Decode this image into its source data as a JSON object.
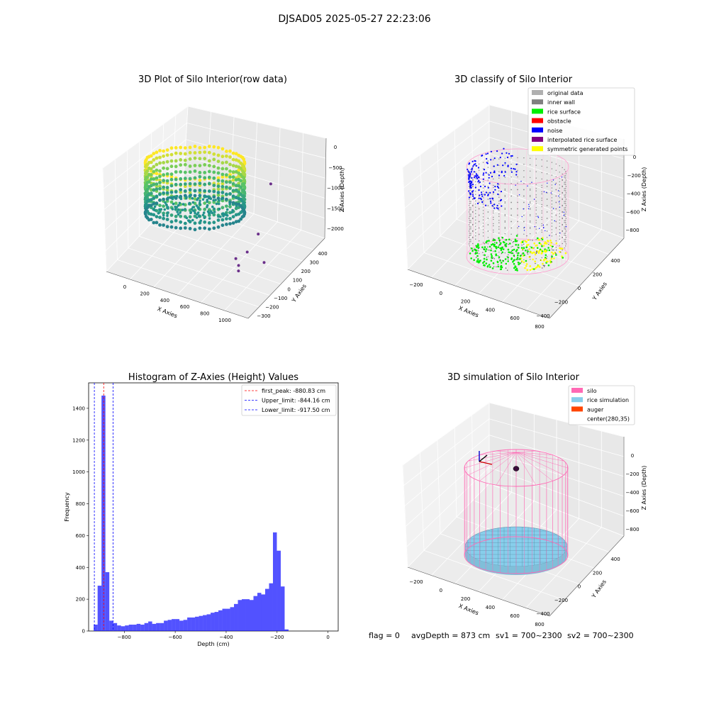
{
  "suptitle": "DJSAD05 2025-05-27 22:23:06",
  "status": {
    "flag": "flag = 0",
    "avg": "avgDepth = 873 cm",
    "sv1": "sv1 = 700~2300",
    "sv2": "sv2 = 700~2300"
  },
  "colors": {
    "original": "#b0b0b0",
    "inner_wall": "#808080",
    "rice_surface": "#00ee00",
    "obstacle": "#ff0000",
    "noise": "#0000ff",
    "interp": "#800080",
    "symmetric": "#ffff00",
    "silo": "#ff69b4",
    "rice_sim": "#87ceeb",
    "auger": "#ff4500",
    "hist": "#0000ff"
  },
  "chart_data": [
    {
      "type": "scatter",
      "title": "3D Plot of Silo Interior(row data)",
      "xlabel": "X Axies",
      "ylabel": "Y Axies",
      "zlabel": "Z Axies (Depth)",
      "x_ticks": [
        "0",
        "200",
        "400",
        "600",
        "800",
        "1000"
      ],
      "y_ticks": [
        "400",
        "300",
        "200",
        "100",
        "0",
        "−100",
        "−200",
        "−300"
      ],
      "z_ticks": [
        "0",
        "−500",
        "−1000",
        "−1500",
        "−2000"
      ],
      "outliers": [
        {
          "x": 700,
          "y": 380,
          "z": -1860
        },
        {
          "x": 780,
          "y": 150,
          "z": -2300
        },
        {
          "x": 760,
          "y": 60,
          "z": -2480
        },
        {
          "x": 720,
          "y": -10,
          "z": -2500
        },
        {
          "x": 760,
          "y": -30,
          "z": -2560
        },
        {
          "x": 800,
          "y": -80,
          "z": -2540
        },
        {
          "x": 1000,
          "y": -60,
          "z": -2280
        }
      ]
    },
    {
      "type": "scatter",
      "title": "3D classify of Silo Interior",
      "xlabel": "X Axies",
      "ylabel": "Y Axies",
      "zlabel": "Z Axies (Depth)",
      "x_ticks": [
        "−200",
        "0",
        "200",
        "400",
        "600",
        "800"
      ],
      "y_ticks": [
        "400",
        "200",
        "0",
        "−200",
        "−400"
      ],
      "z_ticks": [
        "0",
        "−200",
        "−400",
        "−600",
        "−800"
      ],
      "legend": [
        {
          "label": "original data",
          "color": "#b0b0b0"
        },
        {
          "label": "inner wall",
          "color": "#808080"
        },
        {
          "label": "rice surface",
          "color": "#00ee00"
        },
        {
          "label": "obstacle",
          "color": "#ff0000"
        },
        {
          "label": "noise",
          "color": "#0000ff"
        },
        {
          "label": "interpolated rice surface",
          "color": "#800080"
        },
        {
          "label": "symmetric generated points",
          "color": "#ffff00"
        }
      ]
    },
    {
      "type": "bar",
      "title": "Histogram of Z-Axies (Height) Values",
      "xlabel": "Depth (cm)",
      "ylabel": "Frequency",
      "xlim": [
        -940,
        40
      ],
      "ylim": [
        0,
        1560
      ],
      "x_ticks": [
        -800,
        -600,
        -400,
        -200,
        0
      ],
      "x_tick_labels": [
        "−800",
        "−600",
        "−400",
        "−200",
        "0"
      ],
      "y_ticks": [
        0,
        200,
        400,
        600,
        800,
        1000,
        1200,
        1400
      ],
      "bin_start": -920,
      "bin_width": 15.3,
      "values": [
        40,
        285,
        1480,
        370,
        65,
        50,
        35,
        30,
        35,
        40,
        40,
        45,
        40,
        50,
        60,
        45,
        50,
        50,
        65,
        70,
        75,
        75,
        65,
        70,
        85,
        85,
        90,
        95,
        100,
        105,
        115,
        120,
        130,
        140,
        140,
        150,
        170,
        195,
        200,
        200,
        195,
        220,
        240,
        230,
        265,
        300,
        620,
        505,
        280,
        10
      ],
      "vlines": [
        {
          "x": -880.83,
          "color": "#ff0000",
          "label": "first_peak: -880.83 cm"
        },
        {
          "x": -844.16,
          "color": "#0000ff",
          "label": "Upper_limit: -844.16 cm"
        },
        {
          "x": -917.5,
          "color": "#0000ff",
          "label": "Lower_limit: -917.50 cm"
        }
      ],
      "legend_position": "upper-right"
    },
    {
      "type": "scatter",
      "title": "3D simulation of Silo Interior",
      "xlabel": "X Axies",
      "ylabel": "Y Axies",
      "zlabel": "Z Axies (Depth)",
      "x_ticks": [
        "−200",
        "0",
        "200",
        "400",
        "600",
        "800"
      ],
      "y_ticks": [
        "400",
        "200",
        "0",
        "−200",
        "−400"
      ],
      "z_ticks": [
        "0",
        "−200",
        "−400",
        "−600",
        "−800"
      ],
      "legend": [
        {
          "label": "silo",
          "color": "#ff69b4"
        },
        {
          "label": "rice simulation",
          "color": "#87ceeb"
        },
        {
          "label": "auger",
          "color": "#ff4500"
        },
        {
          "label": "center(280,35)",
          "color": ""
        }
      ]
    }
  ]
}
